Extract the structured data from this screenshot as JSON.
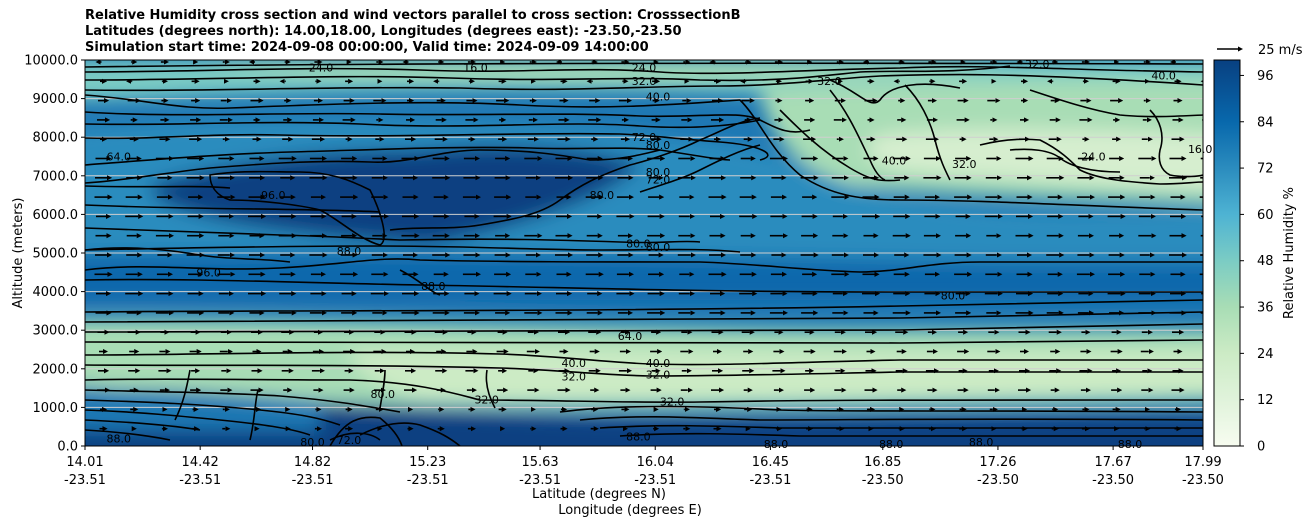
{
  "chart_data": {
    "type": "heatmap",
    "title_lines": [
      "Relative Humidity cross section and wind vectors parallel to cross section: CrosssectionB",
      "Latitudes (degrees north): 14.00,18.00, Longitudes (degrees east): -23.50,-23.50",
      "Simulation start time: 2024-09-08 00:00:00, Valid time: 2024-09-09 14:00:00"
    ],
    "ylabel": "Altitude (meters)",
    "xlabel_lines": [
      "Latitude (degrees N)",
      "Longitude (degrees E)"
    ],
    "ylim": [
      0,
      10000
    ],
    "y_ticks": [
      "0.0",
      "1000.0",
      "2000.0",
      "3000.0",
      "4000.0",
      "5000.0",
      "6000.0",
      "7000.0",
      "8000.0",
      "9000.0",
      "10000.0"
    ],
    "x_ticks": [
      {
        "lat": "14.01",
        "lon": "-23.51"
      },
      {
        "lat": "14.42",
        "lon": "-23.51"
      },
      {
        "lat": "14.82",
        "lon": "-23.51"
      },
      {
        "lat": "15.23",
        "lon": "-23.51"
      },
      {
        "lat": "15.63",
        "lon": "-23.51"
      },
      {
        "lat": "16.04",
        "lon": "-23.51"
      },
      {
        "lat": "16.45",
        "lon": "-23.51"
      },
      {
        "lat": "16.85",
        "lon": "-23.50"
      },
      {
        "lat": "17.26",
        "lon": "-23.50"
      },
      {
        "lat": "17.67",
        "lon": "-23.50"
      },
      {
        "lat": "17.99",
        "lon": "-23.50"
      }
    ],
    "colorbar": {
      "label": "Relative Humidity %",
      "range": [
        0,
        100
      ],
      "ticks": [
        "0",
        "12",
        "24",
        "36",
        "48",
        "60",
        "72",
        "84",
        "96"
      ],
      "colormap": "GnBu"
    },
    "wind_key": {
      "label": "25 m/s"
    },
    "grid": "horizontal",
    "contour_labels": [
      {
        "text": "24.0",
        "lat": 14.85,
        "alt": 9800
      },
      {
        "text": "16.0",
        "lat": 15.4,
        "alt": 9800
      },
      {
        "text": "24.0",
        "lat": 16.0,
        "alt": 9800
      },
      {
        "text": "32.0",
        "lat": 16.0,
        "alt": 9450
      },
      {
        "text": "40.0",
        "lat": 16.05,
        "alt": 9050
      },
      {
        "text": "32.0",
        "lat": 16.66,
        "alt": 9450
      },
      {
        "text": "32.0",
        "lat": 17.4,
        "alt": 9900
      },
      {
        "text": "40.0",
        "lat": 17.85,
        "alt": 9600
      },
      {
        "text": "72.0",
        "lat": 16.0,
        "alt": 8000
      },
      {
        "text": "80.0",
        "lat": 16.05,
        "alt": 7800
      },
      {
        "text": "80.0",
        "lat": 16.05,
        "alt": 7100
      },
      {
        "text": "72.0",
        "lat": 16.05,
        "alt": 6900
      },
      {
        "text": "80.0",
        "lat": 15.85,
        "alt": 6500
      },
      {
        "text": "64.0",
        "lat": 14.13,
        "alt": 7500
      },
      {
        "text": "96.0",
        "lat": 14.68,
        "alt": 6500
      },
      {
        "text": "40.0",
        "lat": 16.89,
        "alt": 7400
      },
      {
        "text": "32.0",
        "lat": 17.14,
        "alt": 7300
      },
      {
        "text": "24.0",
        "lat": 17.6,
        "alt": 7500
      },
      {
        "text": "16.0",
        "lat": 17.98,
        "alt": 7700
      },
      {
        "text": "80.0",
        "lat": 15.98,
        "alt": 5250
      },
      {
        "text": "80.0",
        "lat": 16.05,
        "alt": 5150
      },
      {
        "text": "88.0",
        "lat": 14.95,
        "alt": 5050
      },
      {
        "text": "96.0",
        "lat": 14.45,
        "alt": 4500
      },
      {
        "text": "88.0",
        "lat": 15.25,
        "alt": 4150
      },
      {
        "text": "80.0",
        "lat": 17.1,
        "alt": 3900
      },
      {
        "text": "64.0",
        "lat": 15.95,
        "alt": 2850
      },
      {
        "text": "40.0",
        "lat": 15.75,
        "alt": 2150
      },
      {
        "text": "40.0",
        "lat": 16.05,
        "alt": 2150
      },
      {
        "text": "32.0",
        "lat": 15.75,
        "alt": 1800
      },
      {
        "text": "32.0",
        "lat": 16.05,
        "alt": 1850
      },
      {
        "text": "32.0",
        "lat": 16.1,
        "alt": 1150
      },
      {
        "text": "88.0",
        "lat": 15.98,
        "alt": 250
      },
      {
        "text": "88.0",
        "lat": 14.13,
        "alt": 200
      },
      {
        "text": "80.0",
        "lat": 14.82,
        "alt": 100
      },
      {
        "text": "72.0",
        "lat": 14.95,
        "alt": 150
      },
      {
        "text": "88.0",
        "lat": 16.47,
        "alt": 50
      },
      {
        "text": "88.0",
        "lat": 16.88,
        "alt": 50
      },
      {
        "text": "88.0",
        "lat": 17.2,
        "alt": 100
      },
      {
        "text": "88.0",
        "lat": 17.73,
        "alt": 50
      },
      {
        "text": "80.0",
        "lat": 15.07,
        "alt": 1350
      },
      {
        "text": "32.0",
        "lat": 15.44,
        "alt": 1200
      }
    ]
  }
}
